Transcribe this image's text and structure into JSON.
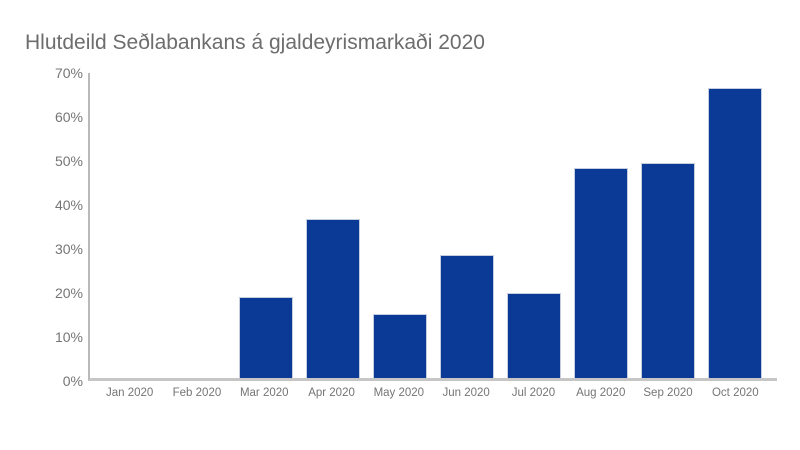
{
  "chart_data": {
    "type": "bar",
    "title": "Hlutdeild Seðlabankans á gjaldeyrismarkaði 2020",
    "categories": [
      "Jan 2020",
      "Feb 2020",
      "Mar 2020",
      "Apr 2020",
      "May 2020",
      "Jun 2020",
      "Jul 2020",
      "Aug 2020",
      "Sep 2020",
      "Oct 2020"
    ],
    "values": [
      0,
      0,
      18.5,
      36.5,
      14.6,
      28.3,
      19.4,
      48.3,
      49.4,
      66.5
    ],
    "unit": "%",
    "xlabel": "",
    "ylabel": "",
    "ylim": [
      0,
      70
    ],
    "ytick_labels": [
      "0%",
      "10%",
      "20%",
      "30%",
      "40%",
      "50%",
      "60%",
      "70%"
    ],
    "grid": false,
    "legend": "none",
    "colors": {
      "bar_fill": "#0a3a96",
      "bar_outline": "#c5cede",
      "axis_line": "#bfbfbf",
      "title_text": "#6d6d6d",
      "tick_text": "#757575",
      "background": "#ffffff"
    }
  }
}
